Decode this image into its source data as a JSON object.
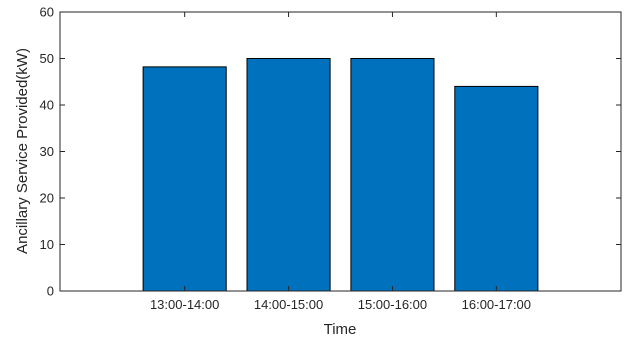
{
  "chart_data": {
    "type": "bar",
    "title": "",
    "xlabel": "Time",
    "ylabel": "Ancillary Service Provided(kW)",
    "categories": [
      "13:00-14:00",
      "14:00-15:00",
      "15:00-16:00",
      "16:00-17:00"
    ],
    "values": [
      48.2,
      50.0,
      50.0,
      44.0
    ],
    "x_positions": [
      2,
      3,
      4,
      5
    ],
    "xlim": [
      0.8,
      6.2
    ],
    "ylim": [
      0,
      60
    ],
    "yticks": [
      0,
      10,
      20,
      30,
      40,
      50,
      60
    ],
    "grid": false,
    "legend": "none",
    "bar_color": "#0072BD",
    "bar_edge_color": "#000000"
  }
}
